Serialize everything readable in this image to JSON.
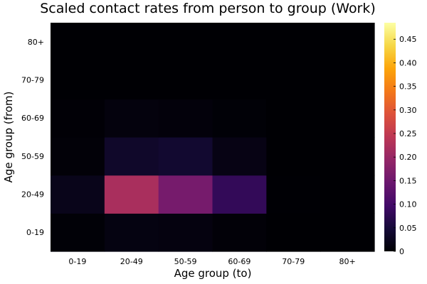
{
  "chart_data": {
    "type": "heatmap",
    "title": "Scaled contact rates from person to group (Work)",
    "xlabel": "Age group (to)",
    "ylabel": "Age group (from)",
    "x_categories": [
      "0-19",
      "20-49",
      "50-59",
      "60-69",
      "70-79",
      "80+"
    ],
    "y_categories": [
      "0-19",
      "20-49",
      "50-59",
      "60-69",
      "70-79",
      "80+"
    ],
    "values": [
      [
        0.003,
        0.012,
        0.01,
        0.004,
        0.0,
        0.0
      ],
      [
        0.02,
        0.22,
        0.16,
        0.08,
        0.001,
        0.0
      ],
      [
        0.004,
        0.035,
        0.04,
        0.015,
        0.0,
        0.0
      ],
      [
        0.002,
        0.008,
        0.006,
        0.003,
        0.0,
        0.0
      ],
      [
        0.0,
        0.0,
        0.0,
        0.0,
        0.0,
        0.0
      ],
      [
        0.0,
        0.0,
        0.0,
        0.0,
        0.0,
        0.0
      ]
    ],
    "colorbar": {
      "colormap": "inferno",
      "range": [
        0,
        0.485
      ],
      "ticks": [
        0,
        0.05,
        0.1,
        0.15,
        0.2,
        0.25,
        0.3,
        0.35,
        0.4,
        0.45
      ],
      "tick_labels": [
        "0",
        "0.05",
        "0.10",
        "0.15",
        "0.20",
        "0.25",
        "0.30",
        "0.35",
        "0.40",
        "0.45"
      ]
    },
    "grid": false
  }
}
